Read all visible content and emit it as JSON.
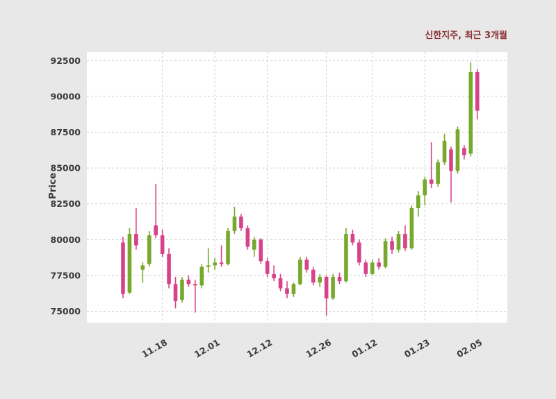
{
  "chart_data": {
    "type": "candlestick",
    "title": "신한지주, 최근 3개월",
    "ylabel": "Price",
    "ylim": [
      74200,
      93100
    ],
    "y_ticks": [
      75000,
      77500,
      80000,
      82500,
      85000,
      87500,
      90000,
      92500
    ],
    "x_ticks": [
      {
        "index": 6,
        "label": "11.18"
      },
      {
        "index": 14,
        "label": "12.01"
      },
      {
        "index": 22,
        "label": "12.12"
      },
      {
        "index": 31,
        "label": "12.26"
      },
      {
        "index": 38,
        "label": "01.12"
      },
      {
        "index": 46,
        "label": "01.23"
      },
      {
        "index": 54,
        "label": "02.05"
      }
    ],
    "ohlc_format": [
      "open",
      "high",
      "low",
      "close"
    ],
    "candles": [
      [
        79800,
        80200,
        75900,
        76200
      ],
      [
        76300,
        80800,
        76200,
        80400
      ],
      [
        80400,
        82200,
        79300,
        79600
      ],
      [
        77900,
        78400,
        77000,
        78200
      ],
      [
        78300,
        80600,
        78100,
        80300
      ],
      [
        81000,
        83900,
        80100,
        80300
      ],
      [
        80300,
        80700,
        78800,
        79000
      ],
      [
        79000,
        79400,
        76600,
        76900
      ],
      [
        76900,
        77400,
        75200,
        75700
      ],
      [
        75800,
        77400,
        75600,
        77200
      ],
      [
        77200,
        77500,
        76700,
        76900
      ],
      [
        76900,
        77200,
        74900,
        76800
      ],
      [
        76800,
        78300,
        76600,
        78100
      ],
      [
        78100,
        79400,
        77700,
        78200
      ],
      [
        78200,
        78700,
        77900,
        78400
      ],
      [
        78400,
        79600,
        78100,
        78300
      ],
      [
        78300,
        80800,
        78200,
        80600
      ],
      [
        80600,
        82300,
        80400,
        81600
      ],
      [
        81600,
        81800,
        80600,
        80800
      ],
      [
        80800,
        81000,
        79300,
        79500
      ],
      [
        79300,
        80200,
        78800,
        80000
      ],
      [
        80000,
        80100,
        78300,
        78500
      ],
      [
        78500,
        78700,
        77400,
        77600
      ],
      [
        77600,
        78200,
        77100,
        77300
      ],
      [
        77300,
        77600,
        76400,
        76600
      ],
      [
        76600,
        77100,
        75900,
        76200
      ],
      [
        76200,
        77000,
        76000,
        76900
      ],
      [
        76900,
        78800,
        76800,
        78600
      ],
      [
        78600,
        78800,
        77700,
        77900
      ],
      [
        77900,
        78100,
        76800,
        77000
      ],
      [
        77000,
        77600,
        76700,
        77400
      ],
      [
        77400,
        77500,
        74700,
        75900
      ],
      [
        75900,
        77600,
        75800,
        77400
      ],
      [
        77400,
        77700,
        76900,
        77100
      ],
      [
        77100,
        80800,
        77000,
        80400
      ],
      [
        80400,
        80700,
        79600,
        79800
      ],
      [
        79800,
        80000,
        78200,
        78400
      ],
      [
        78400,
        78600,
        77400,
        77600
      ],
      [
        77600,
        78600,
        77500,
        78400
      ],
      [
        78400,
        78700,
        77900,
        78100
      ],
      [
        78100,
        80100,
        78000,
        79900
      ],
      [
        79900,
        80200,
        79000,
        79300
      ],
      [
        79300,
        80600,
        79100,
        80400
      ],
      [
        80400,
        81000,
        79200,
        79400
      ],
      [
        79400,
        82400,
        79300,
        82200
      ],
      [
        82200,
        83400,
        81600,
        83100
      ],
      [
        83100,
        84400,
        82400,
        84200
      ],
      [
        84200,
        86800,
        83600,
        83900
      ],
      [
        83900,
        85600,
        83700,
        85400
      ],
      [
        85400,
        87400,
        85200,
        86900
      ],
      [
        86300,
        86500,
        82600,
        84800
      ],
      [
        84800,
        87900,
        84600,
        87700
      ],
      [
        86400,
        86600,
        85600,
        85900
      ],
      [
        86000,
        92400,
        85800,
        91700
      ],
      [
        91700,
        91900,
        88400,
        89000
      ]
    ],
    "colors": {
      "up": "#76a92c",
      "down": "#d7438a",
      "grid": "#cfcfcf",
      "plot_bg": "#ffffff",
      "outer_bg": "#e8e8e8",
      "tick_text": "#3a3a3a",
      "title_text": "#8b3232"
    },
    "grid": "dashed",
    "legend": "none"
  }
}
